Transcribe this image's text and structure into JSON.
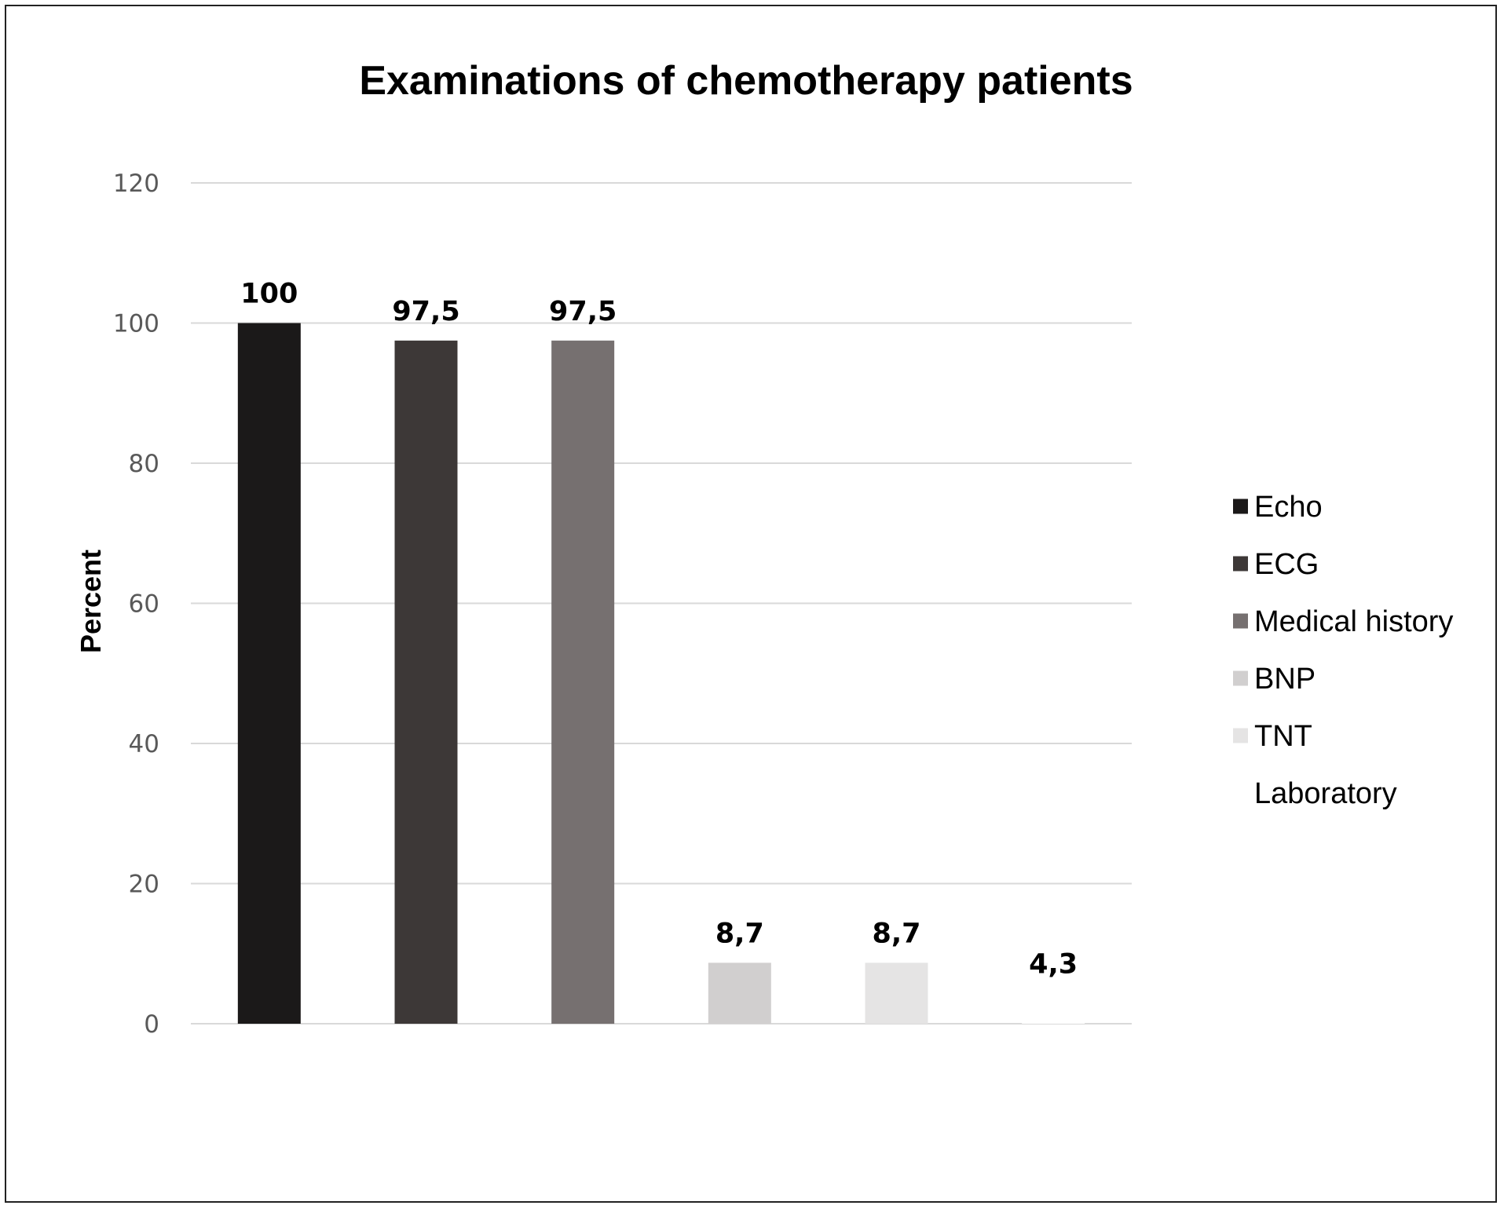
{
  "chart_data": {
    "type": "bar",
    "title": "Examinations of chemotherapy patients",
    "xlabel": "",
    "ylabel": "Percent",
    "ylim": [
      0,
      120
    ],
    "yticks": [
      0,
      20,
      40,
      60,
      80,
      100,
      120
    ],
    "grid": true,
    "legend_position": "right",
    "series": [
      {
        "name": "Echo",
        "value": 100,
        "label": "100",
        "color": "#1b1919"
      },
      {
        "name": "ECG",
        "value": 97.5,
        "label": "97,5",
        "color": "#3d3837"
      },
      {
        "name": "Medical history",
        "value": 97.5,
        "label": "97,5",
        "color": "#767070"
      },
      {
        "name": "BNP",
        "value": 8.7,
        "label": "8,7",
        "color": "#d1cfcf"
      },
      {
        "name": "TNT",
        "value": 8.7,
        "label": "8,7",
        "color": "#e5e4e4"
      },
      {
        "name": "Laboratory",
        "value": 4.3,
        "label": "4,3",
        "color": "#ffffff"
      }
    ],
    "colors": {
      "gridline": "#d9d9d9",
      "axis": "#d9d9d9",
      "frame": "#222222"
    }
  }
}
